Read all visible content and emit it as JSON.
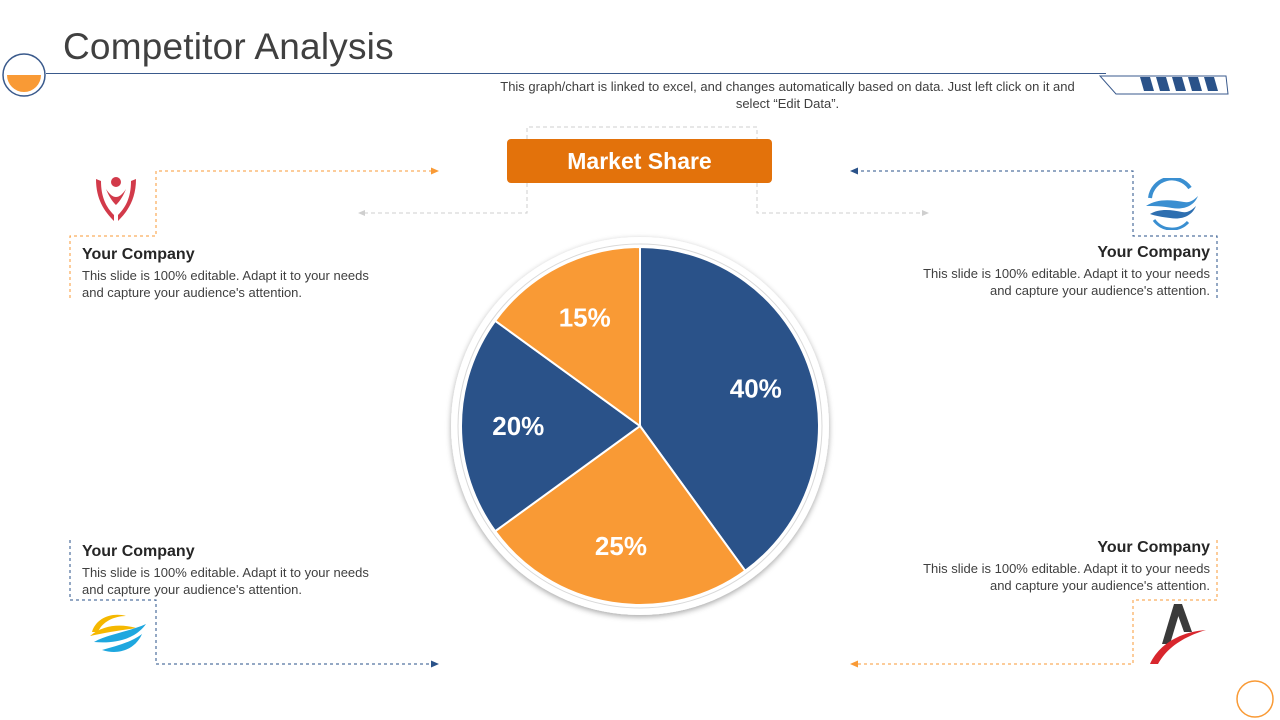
{
  "slide": {
    "title": "Competitor Analysis",
    "subtitle": "This graph/chart is linked to excel, and changes automatically based on data. Just left click on it and select “Edit Data”."
  },
  "market_share_label": "Market Share",
  "companies": [
    {
      "name": "Your Company",
      "description": "This slide is 100% editable. Adapt it to your needs and capture your audience's attention.",
      "icon": "tulip-person-logo-icon"
    },
    {
      "name": "Your Company",
      "description": "This slide is 100% editable. Adapt it to your needs and capture your audience's attention.",
      "icon": "wave-globe-logo-icon"
    },
    {
      "name": "Your Company",
      "description": "This slide is 100% editable. Adapt it to your needs and capture your audience's attention.",
      "icon": "swoosh-circle-logo-icon"
    },
    {
      "name": "Your Company",
      "description": "This slide is 100% editable. Adapt it to your needs and capture your audience's attention.",
      "icon": "letter-a-logo-icon"
    }
  ],
  "colors": {
    "blue": "#2a5289",
    "orange": "#f99a35",
    "accent_orange": "#e3720b"
  },
  "chart_data": {
    "type": "pie",
    "title": "",
    "start": "12 o'clock, clockwise",
    "slices": [
      {
        "label": "40%",
        "value": 40,
        "color": "#2a5289"
      },
      {
        "label": "25%",
        "value": 25,
        "color": "#f99a35"
      },
      {
        "label": "20%",
        "value": 20,
        "color": "#2a5289"
      },
      {
        "label": "15%",
        "value": 15,
        "color": "#f99a35"
      }
    ]
  }
}
